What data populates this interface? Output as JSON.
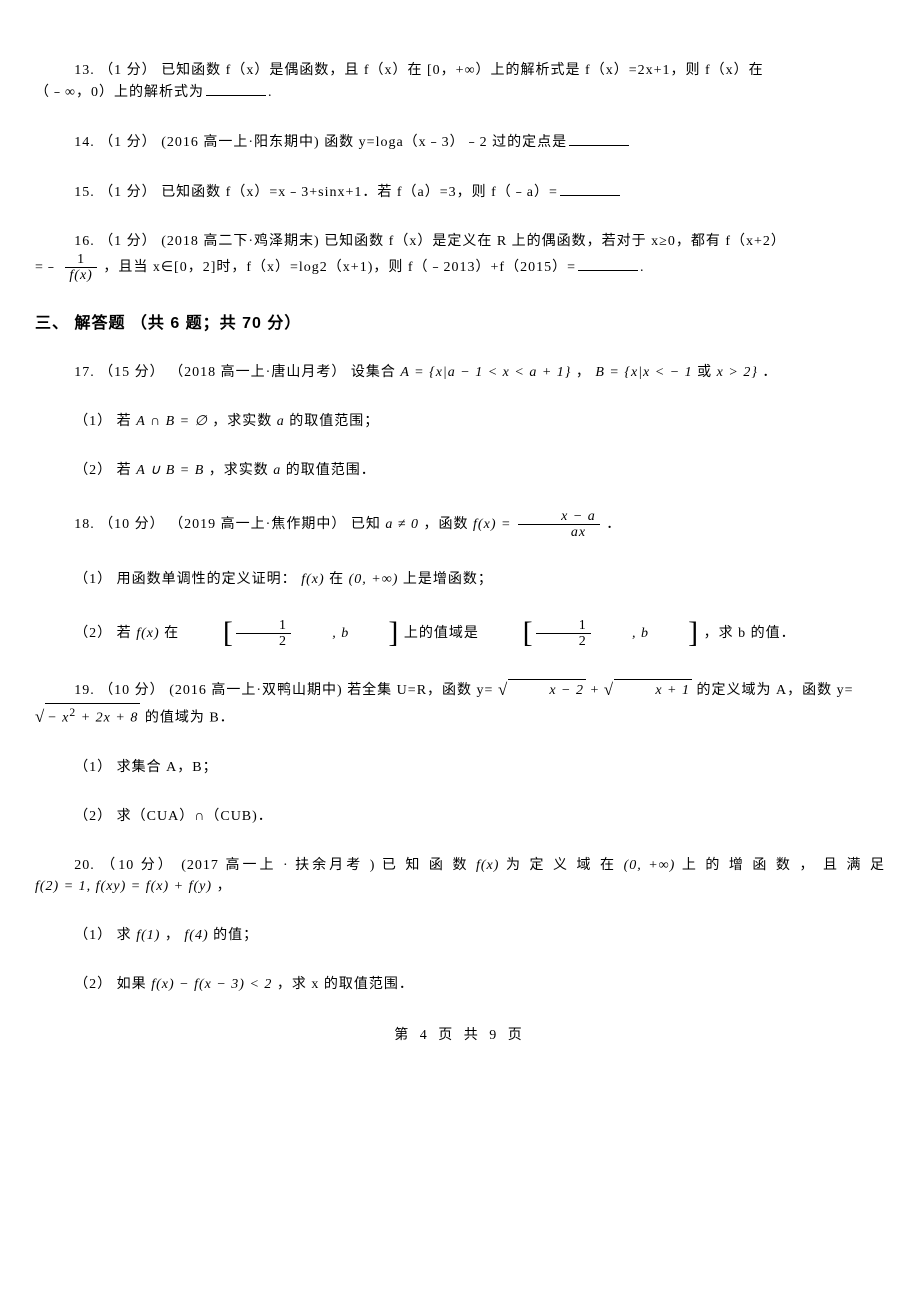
{
  "q13": {
    "num": "13.",
    "pts": "（1 分）",
    "text1": " 已知函数 f（x）是偶函数，且 f（x）在 [0，+∞）上的解析式是 f（x）=2x+1，则 f（x）在",
    "text2": "（﹣∞，0）上的解析式为",
    "end": "."
  },
  "q14": {
    "num": "14.",
    "pts": "（1 分）",
    "src": "(2016 高一上·阳东期中)",
    "text": "函数 y=loga（x﹣3）﹣2 过的定点是"
  },
  "q15": {
    "num": "15.",
    "pts": "（1 分）",
    "text": " 已知函数 f（x）=x﹣3+sinx+1．若 f（a）=3，则 f（﹣a）="
  },
  "q16": {
    "num": "16.",
    "pts": "（1 分）",
    "src": "(2018 高二下·鸡泽期末)",
    "text1": "已知函数 f（x）是定义在 R 上的偶函数，若对于 x≥0，都有 f（x+2）",
    "text2": "=﹣ ",
    "frac_num": "1",
    "frac_den": "f(x)",
    "text3": " ，且当 x∈[0，2]时，f（x）=log2（x+1)，则 f（﹣2013）+f（2015）=",
    "end": "."
  },
  "section3": "三、 解答题 （共 6 题；共 70 分）",
  "q17": {
    "num": "17.",
    "pts": "（15 分）",
    "src": "（2018 高一上·唐山月考）",
    "text1": "设集合 ",
    "setA": "A = {x|a − 1 < x < a + 1}",
    "text2": " ，  ",
    "setB": "B = {x|x < − 1",
    "or": " 或 ",
    "setB2": "x > 2}",
    "end": " ．",
    "p1a": "（1） 若 ",
    "p1b": "A ∩ B = ∅",
    "p1c": " ，求实数 ",
    "p1d": "a",
    "p1e": " 的取值范围；",
    "p2a": "（2） 若 ",
    "p2b": "A ∪ B = B",
    "p2c": " ，求实数 ",
    "p2d": "a",
    "p2e": " 的取值范围．"
  },
  "q18": {
    "num": "18.",
    "pts": "（10 分）",
    "src": "（2019 高一上·焦作期中）",
    "text1": "已知 ",
    "cond": "a ≠ 0",
    "text2": " ，函数 ",
    "fx": "f(x) = ",
    "frac_num": "x − a",
    "frac_den": "ax",
    "end": "   ．",
    "p1a": "（1） 用函数单调性的定义证明： ",
    "p1b": "f(x)",
    "p1c": " 在 ",
    "p1d": "(0, +∞)",
    "p1e": " 上是增函数；",
    "p2a": "（2） 若 ",
    "p2b": "f(x)",
    "p2c": " 在 ",
    "br_num": "1",
    "br_den": "2",
    "br_b": ", b",
    "p2d": " 上的值域是 ",
    "p2e": " ，求 b 的值．"
  },
  "q19": {
    "num": "19.",
    "pts": "（10 分）",
    "src": "(2016 高一上·双鸭山期中)",
    "text1": "若全集 U=R，函数 y= ",
    "sq1": "x − 2",
    "text2": "  + ",
    "sq2": "x + 1",
    "text3": "  的定义域为 A，函数 y=",
    "sq3a": "− x",
    "sq3b": " + 2x + 8",
    "text4": "  的值域为 B．",
    "p1": "（1） 求集合 A，B；",
    "p2": "（2） 求（CUA）∩（CUB)．"
  },
  "q20": {
    "num": "20.",
    "pts": "（10 分）",
    "src": " (2017 高一上 · 扶余月考 )",
    "text1": "已 知 函 数  ",
    "fx": "f(x)",
    "text2": "  为 定 义 域 在  ",
    "dom": "(0, +∞)",
    "text3": "  上 的 增 函 数 ， 且 满 足",
    "eq": "f(2) = 1, f(xy) = f(x) + f(y)",
    "end": " ，",
    "p1a": "（1） 求 ",
    "p1b": "f(1)",
    "p1c": " ， ",
    "p1d": "f(4)",
    "p1e": " 的值；",
    "p2a": "（2） 如果 ",
    "p2b": "f(x) − f(x − 3) < 2",
    "p2c": " ，求 x 的取值范围．"
  },
  "footer": "第 4 页 共 9 页"
}
